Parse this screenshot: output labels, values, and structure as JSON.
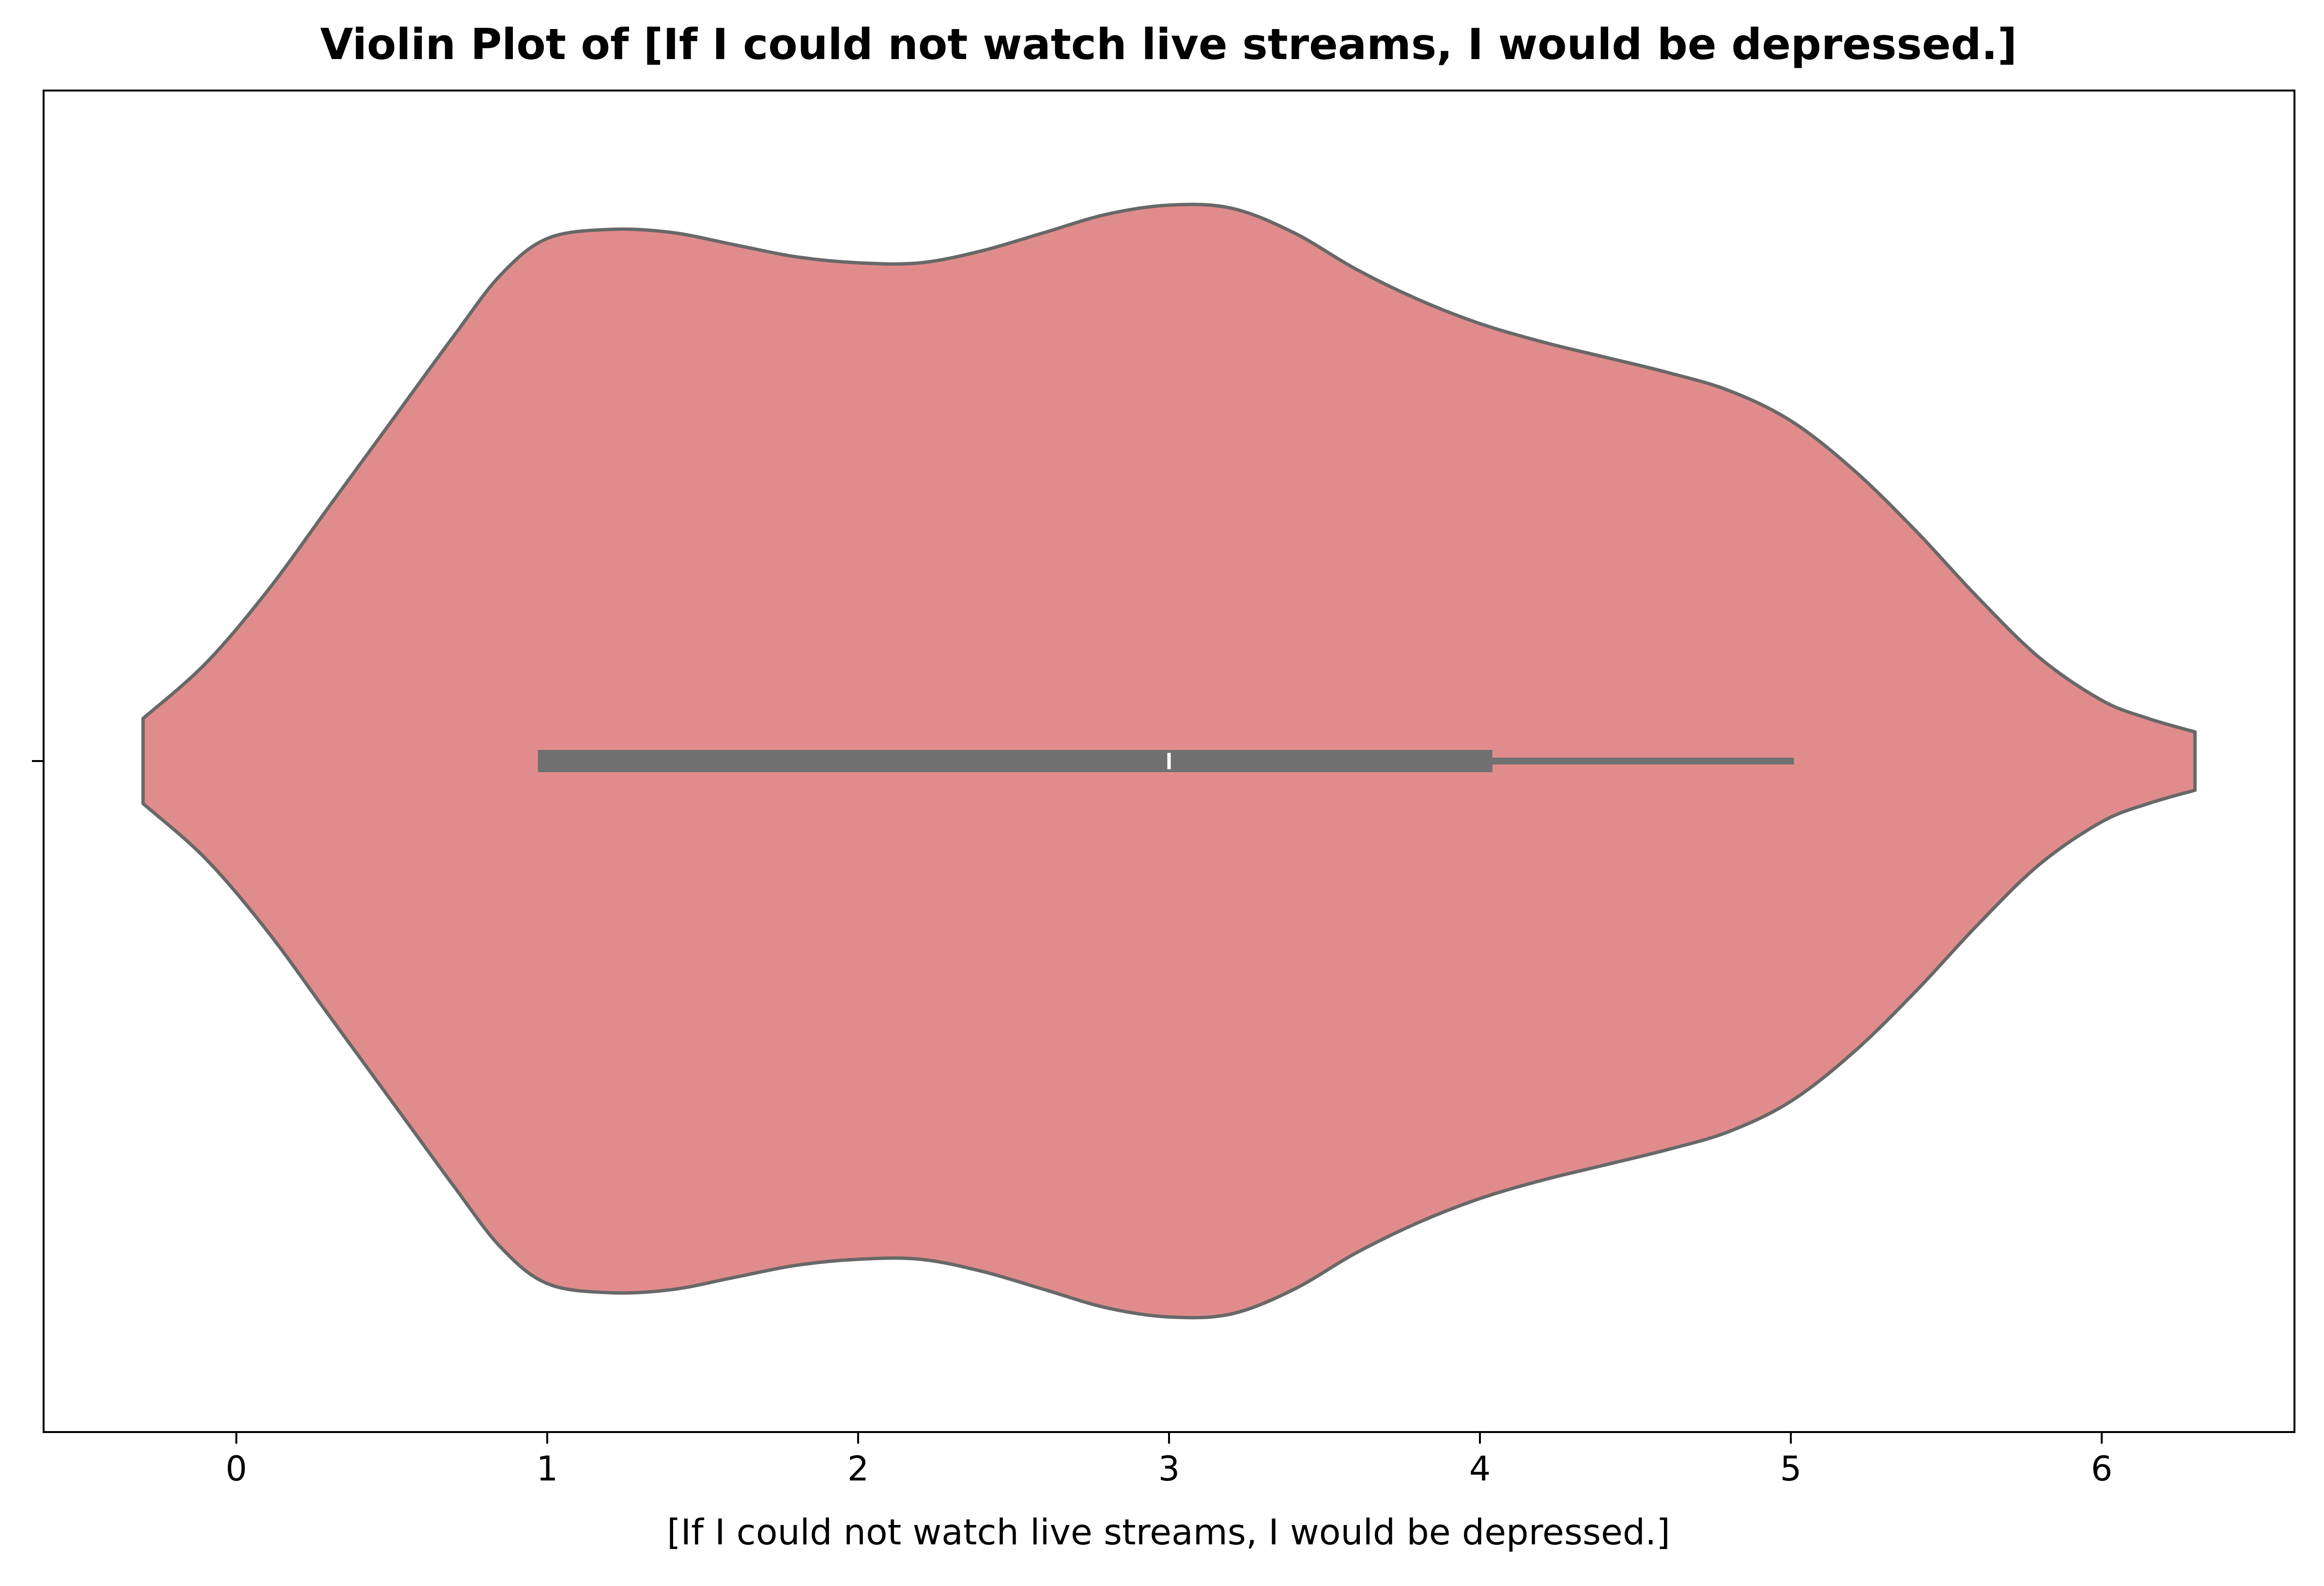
{
  "chart_data": {
    "type": "violin",
    "title": "Violin Plot of [If I could not watch live streams, I would be depressed.]",
    "xlabel": "[If I could not watch live streams, I would be depressed.]",
    "ylabel": "",
    "xlim": [
      -0.62,
      6.62
    ],
    "x_ticks": [
      "0",
      "1",
      "2",
      "3",
      "4",
      "5",
      "6"
    ],
    "y_ticks": [
      ""
    ],
    "orientation": "horizontal",
    "grid": false,
    "density": {
      "x": [
        -0.3,
        -0.1,
        0.1,
        0.3,
        0.5,
        0.7,
        0.85,
        1.0,
        1.2,
        1.4,
        1.6,
        1.8,
        2.0,
        2.2,
        2.4,
        2.6,
        2.8,
        3.0,
        3.2,
        3.4,
        3.6,
        3.8,
        4.0,
        4.2,
        4.4,
        4.6,
        4.8,
        5.0,
        5.2,
        5.4,
        5.6,
        5.8,
        6.0,
        6.15,
        6.3
      ],
      "half_width": [
        0.07,
        0.16,
        0.28,
        0.42,
        0.56,
        0.7,
        0.8,
        0.86,
        0.875,
        0.87,
        0.85,
        0.83,
        0.82,
        0.82,
        0.84,
        0.87,
        0.9,
        0.915,
        0.91,
        0.87,
        0.81,
        0.76,
        0.72,
        0.69,
        0.665,
        0.64,
        0.61,
        0.56,
        0.48,
        0.38,
        0.27,
        0.17,
        0.1,
        0.07,
        0.048
      ]
    },
    "box": {
      "q1": 0.97,
      "median": 3.0,
      "q3": 4.04,
      "whisker_low": 0.97,
      "whisker_high": 5.01
    },
    "colors": {
      "violin_fill": "#e18c8c",
      "violin_edge": "#686868",
      "box": "#707070",
      "median": "#ffffff",
      "axes": "#000000",
      "background": "#ffffff"
    }
  }
}
